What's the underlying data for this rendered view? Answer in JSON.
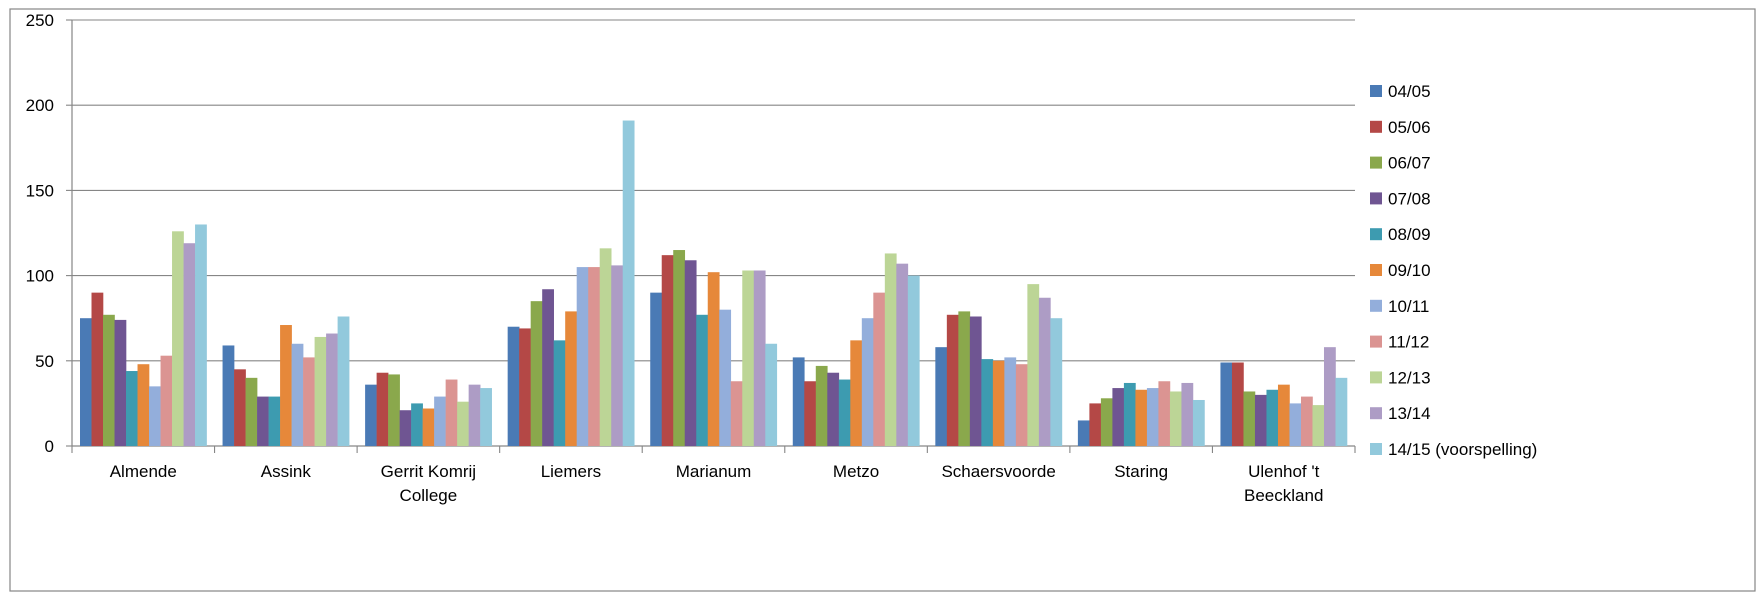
{
  "chart_data": {
    "type": "bar",
    "title": "",
    "xlabel": "",
    "ylabel": "",
    "ylim": [
      0,
      250
    ],
    "yticks": [
      0,
      50,
      100,
      150,
      200,
      250
    ],
    "grid": true,
    "legend_position": "right",
    "categories": [
      [
        "Almende"
      ],
      [
        "Assink"
      ],
      [
        "Gerrit Komrij",
        "College"
      ],
      [
        "Liemers"
      ],
      [
        "Marianum"
      ],
      [
        "Metzo"
      ],
      [
        "Schaersvoorde"
      ],
      [
        "Staring"
      ],
      [
        "Ulenhof 't",
        "Beeckland"
      ]
    ],
    "series": [
      {
        "name": "04/05",
        "color": "#4a7ab5",
        "values": [
          75,
          59,
          36,
          70,
          90,
          52,
          58,
          15,
          49
        ]
      },
      {
        "name": " 05/06",
        "color": "#b44846",
        "values": [
          90,
          45,
          43,
          69,
          112,
          38,
          77,
          25,
          49
        ]
      },
      {
        "name": "06/07",
        "color": "#8aa84c",
        "values": [
          77,
          40,
          42,
          85,
          115,
          47,
          79,
          28,
          32
        ]
      },
      {
        "name": "07/08",
        "color": "#6f5592",
        "values": [
          74,
          29,
          21,
          92,
          109,
          43,
          76,
          34,
          30
        ]
      },
      {
        "name": "08/09",
        "color": "#3d9bb0",
        "values": [
          44,
          29,
          25,
          62,
          77,
          39,
          51,
          37,
          33
        ]
      },
      {
        "name": "09/10",
        "color": "#e6883a",
        "values": [
          48,
          71,
          22,
          79,
          102,
          62,
          50,
          33,
          36
        ]
      },
      {
        "name": "10/11",
        "color": "#93aedb",
        "values": [
          35,
          60,
          29,
          105,
          80,
          75,
          52,
          34,
          25
        ]
      },
      {
        "name": "11/12",
        "color": "#db9492",
        "values": [
          53,
          52,
          39,
          105,
          38,
          90,
          48,
          38,
          29
        ]
      },
      {
        "name": "12/13",
        "color": "#bcd596",
        "values": [
          126,
          64,
          26,
          116,
          103,
          113,
          95,
          32,
          24
        ]
      },
      {
        "name": "13/14",
        "color": "#ad9cc5",
        "values": [
          119,
          66,
          36,
          106,
          103,
          107,
          87,
          37,
          58
        ]
      },
      {
        "name": "14/15 (voorspelling)",
        "color": "#92c9dc",
        "values": [
          130,
          76,
          34,
          191,
          60,
          100,
          75,
          27,
          40
        ]
      }
    ]
  }
}
